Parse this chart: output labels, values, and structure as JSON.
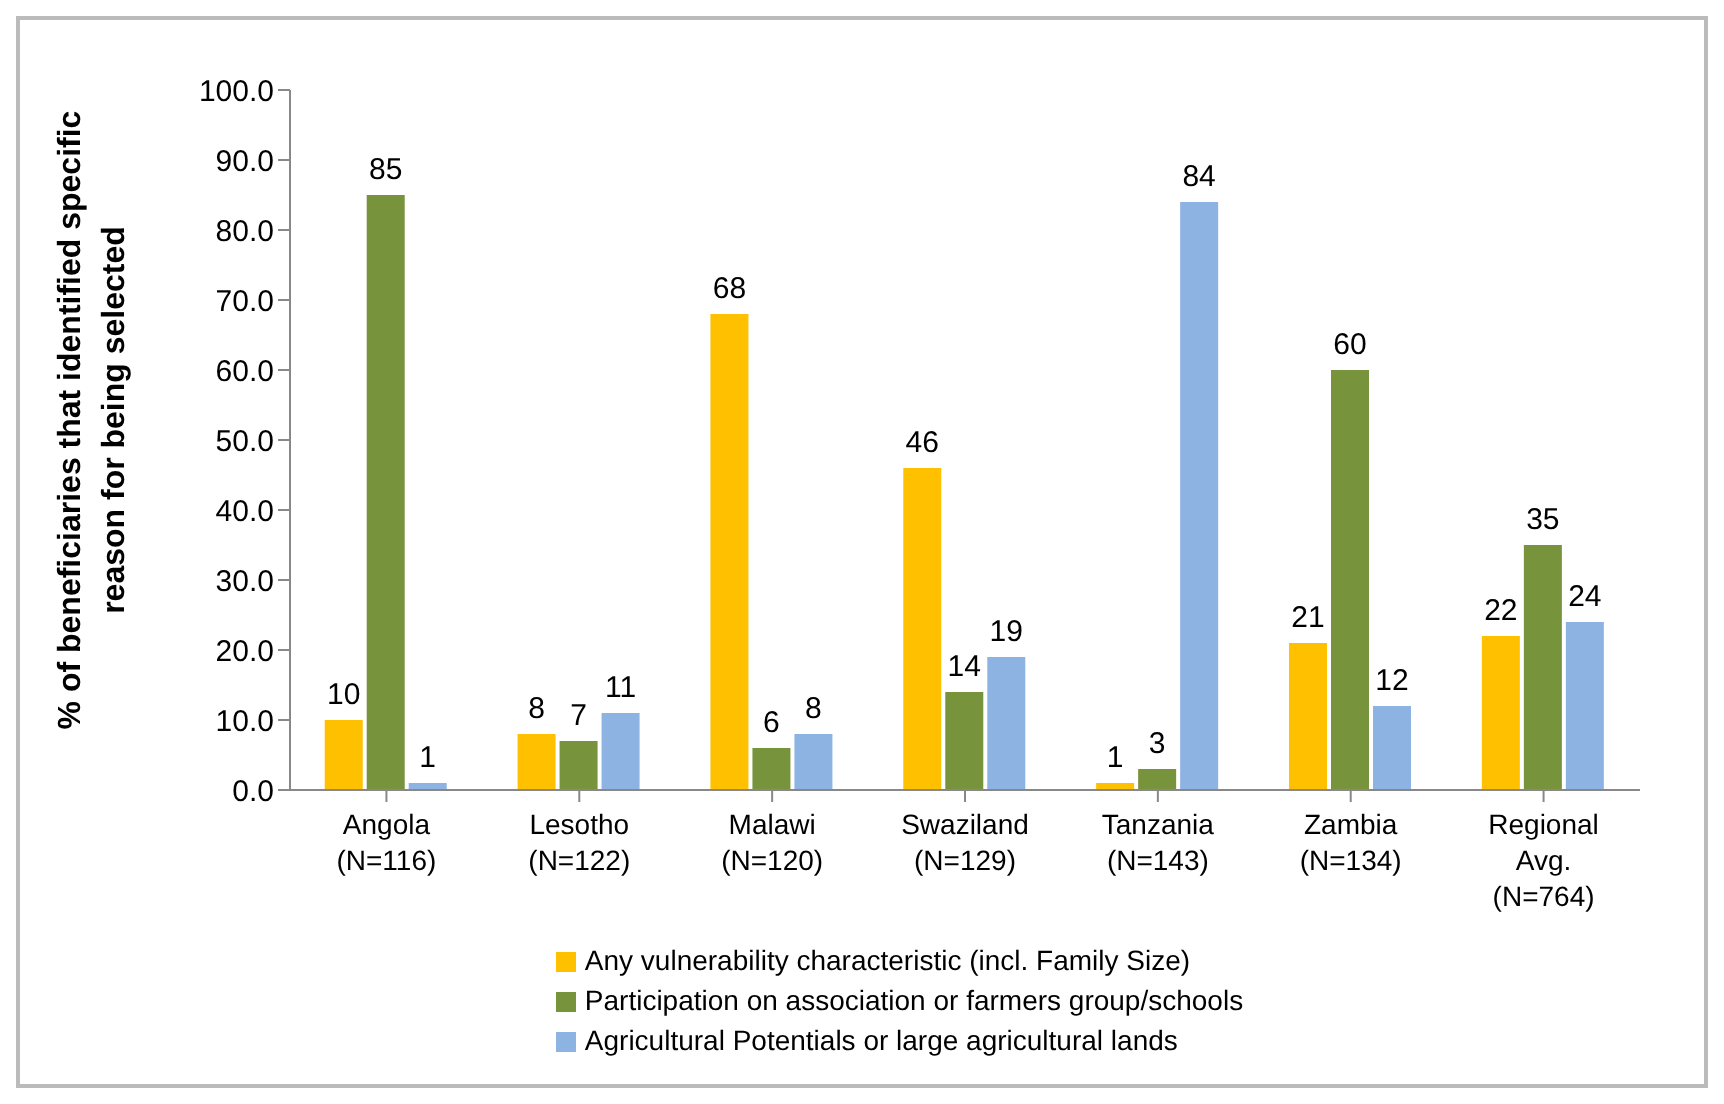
{
  "chart_data": {
    "type": "bar",
    "ylabel": "% of beneficiaries that identified specific\nreason for being selected",
    "categories": [
      "Angola\n(N=116)",
      "Lesotho\n(N=122)",
      "Malawi\n(N=120)",
      "Swaziland\n(N=129)",
      "Tanzania\n(N=143)",
      "Zambia\n(N=134)",
      "Regional\nAvg.\n(N=764)"
    ],
    "series": [
      {
        "name": "Any vulnerability characteristic (incl. Family Size)",
        "color": "#ffc000",
        "values": [
          10,
          8,
          68,
          46,
          1,
          21,
          22
        ]
      },
      {
        "name": "Participation on association or farmers group/schools",
        "color": "#77933c",
        "values": [
          85,
          7,
          6,
          14,
          3,
          60,
          35
        ]
      },
      {
        "name": "Agricultural Potentials or large agricultural lands",
        "color": "#8db3e2",
        "values": [
          1,
          11,
          8,
          19,
          84,
          12,
          24
        ]
      }
    ],
    "ylim": [
      0,
      100
    ],
    "yticks": [
      {
        "value": 0,
        "label": "0.0"
      },
      {
        "value": 10,
        "label": "10.0"
      },
      {
        "value": 20,
        "label": "20.0"
      },
      {
        "value": 30,
        "label": "30.0"
      },
      {
        "value": 40,
        "label": "40.0"
      },
      {
        "value": 50,
        "label": "50.0"
      },
      {
        "value": 60,
        "label": "60.0"
      },
      {
        "value": 70,
        "label": "70.0"
      },
      {
        "value": 80,
        "label": "80.0"
      },
      {
        "value": 90,
        "label": "90.0"
      },
      {
        "value": 100,
        "label": "100.0"
      }
    ],
    "data_labels": true,
    "legend": "bottom",
    "grid": false
  }
}
